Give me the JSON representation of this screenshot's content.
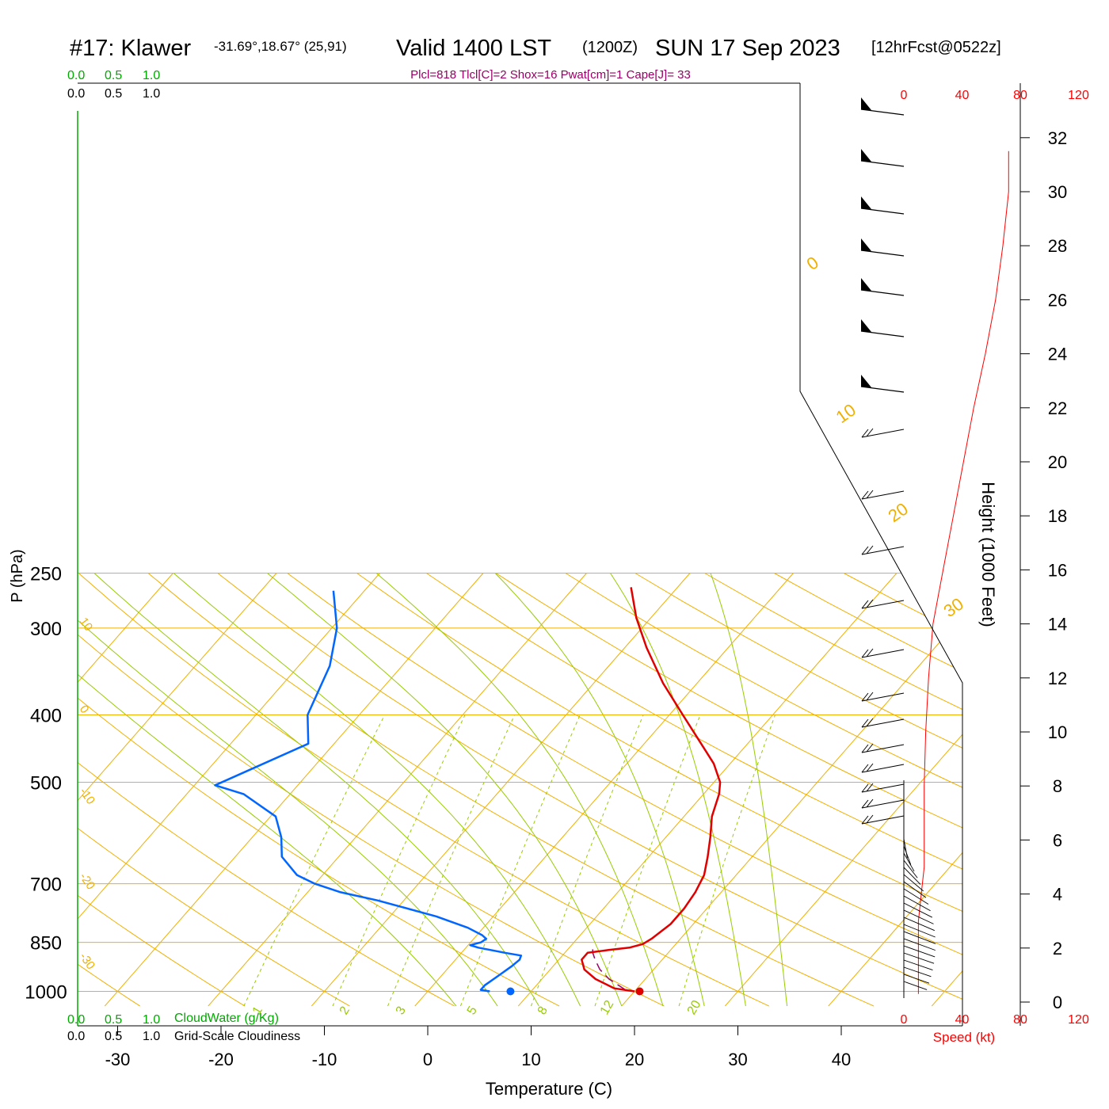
{
  "header": {
    "station": "#17: Klawer",
    "coords": "-31.69°,18.67° (25,91)",
    "valid": "Valid 1400 LST",
    "utc": "(1200Z)",
    "date": "SUN 17 Sep 2023",
    "forecast": "[12hrFcst@0522z]"
  },
  "indices": "Plcl=818 Tlcl[C]=2 Shox=16 Pwat[cm]=1 Cape[J]= 33",
  "colors": {
    "temperature": "#e00000",
    "dewpoint": "#0066ff",
    "isotherm": "#f0b000",
    "adiabat": "#f0b000",
    "moist_adiabat": "#99cc00",
    "mixing_ratio": "#99cc00",
    "cloud_green": "#00aa00",
    "parcel": "#990066",
    "speed_red": "#ff0000"
  },
  "chart_data": {
    "type": "line",
    "title": "#17: Klawer  Valid 1400 LST (1200Z) SUN 17 Sep 2023",
    "xlabel": "Temperature (C)",
    "ylabel": "P (hPa)",
    "right_axis_label": "Height (1000 Feet)",
    "xlim": [
      -34,
      36
    ],
    "ylim": [
      1050,
      250
    ],
    "x_ticks": [
      "-30",
      "-20",
      "-10",
      "0",
      "10",
      "20",
      "30",
      "40"
    ],
    "x_tick_values": [
      -30,
      -20,
      -10,
      0,
      10,
      20,
      30,
      40
    ],
    "p_ticks": [
      "250",
      "300",
      "400",
      "500",
      "700",
      "850",
      "1000"
    ],
    "p_tick_values": [
      250,
      300,
      400,
      500,
      700,
      850,
      1000
    ],
    "height_ticks": [
      "0",
      "2",
      "4",
      "6",
      "8",
      "10",
      "12",
      "14",
      "16",
      "18",
      "20",
      "22",
      "24",
      "26",
      "28",
      "30",
      "32"
    ],
    "height_tick_values": [
      0,
      2,
      4,
      6,
      8,
      10,
      12,
      14,
      16,
      18,
      20,
      22,
      24,
      26,
      28,
      30,
      32
    ],
    "cloud_scale_top": [
      "0.0",
      "0.5",
      "1.0"
    ],
    "cloud_scale_bottom": [
      "0.0",
      "0.5",
      "1.0"
    ],
    "cloud_water_label": "CloudWater (g/Kg)",
    "cloudiness_label": "Grid-Scale Cloudiness",
    "speed_ticks": [
      "0",
      "40",
      "80",
      "120"
    ],
    "speed_tick_values": [
      0,
      40,
      80,
      120
    ],
    "speed_label": "Speed (kt)",
    "isotherm_labels": [
      "10",
      "0",
      "-10",
      "-20",
      "-30",
      "0",
      "10",
      "20",
      "30"
    ],
    "isotherm_label_values": [
      10,
      0,
      -10,
      -20,
      -30,
      0,
      10,
      20,
      30
    ],
    "mixing_ratio_labels": [
      "1",
      "2",
      "3",
      "5",
      "8",
      "12",
      "20"
    ],
    "mixing_ratio_values": [
      1,
      2,
      3,
      5,
      8,
      12,
      20
    ],
    "series": [
      {
        "name": "Temperature",
        "p": [
          1000,
          990,
          960,
          930,
          900,
          880,
          872,
          865,
          855,
          840,
          800,
          760,
          720,
          680,
          640,
          600,
          560,
          520,
          500,
          470,
          440,
          400,
          360,
          320,
          290,
          262
        ],
        "values": [
          20.0,
          17.8,
          15.2,
          13.3,
          12.2,
          12.2,
          14.0,
          15.8,
          16.8,
          17.2,
          17.8,
          17.8,
          17.5,
          16.9,
          15.7,
          14.3,
          12.7,
          11.5,
          10.6,
          8.4,
          5.5,
          1.3,
          -3.3,
          -7.9,
          -11.4,
          -14.5
        ]
      },
      {
        "name": "Dewpoint",
        "p": [
          1000,
          995,
          980,
          950,
          920,
          900,
          888,
          880,
          865,
          858,
          850,
          840,
          830,
          810,
          780,
          740,
          720,
          700,
          680,
          640,
          600,
          560,
          520,
          505,
          440,
          400,
          340,
          300,
          265
        ],
        "values": [
          6.0,
          5.0,
          5.0,
          5.5,
          6.0,
          6.2,
          6.0,
          4.2,
          1.2,
          0.2,
          1.0,
          1.2,
          0.5,
          -1.5,
          -5.5,
          -12.5,
          -16.8,
          -20.0,
          -22.5,
          -25.5,
          -27.2,
          -29.5,
          -34.5,
          -38.0,
          -32.5,
          -35.0,
          -37.0,
          -39.5,
          -43.0
        ]
      },
      {
        "name": "Parcel",
        "p": [
          995,
          960,
          930,
          900,
          880,
          870
        ],
        "values": [
          19.0,
          16.5,
          14.8,
          13.5,
          12.7,
          12.4
        ]
      },
      {
        "name": "WindSpeed",
        "heights": [
          0.3,
          1,
          2,
          3,
          4,
          5,
          6,
          8,
          10,
          12,
          14,
          16,
          18,
          20,
          22,
          24,
          26,
          28,
          30,
          31.5
        ],
        "values": [
          10,
          10,
          10,
          10,
          12,
          14,
          14,
          14,
          15,
          17,
          20,
          27,
          34,
          41,
          48,
          56,
          63,
          68,
          72,
          72
        ]
      }
    ],
    "surface_temperature": 20.5,
    "surface_dewpoint": 8.0
  }
}
